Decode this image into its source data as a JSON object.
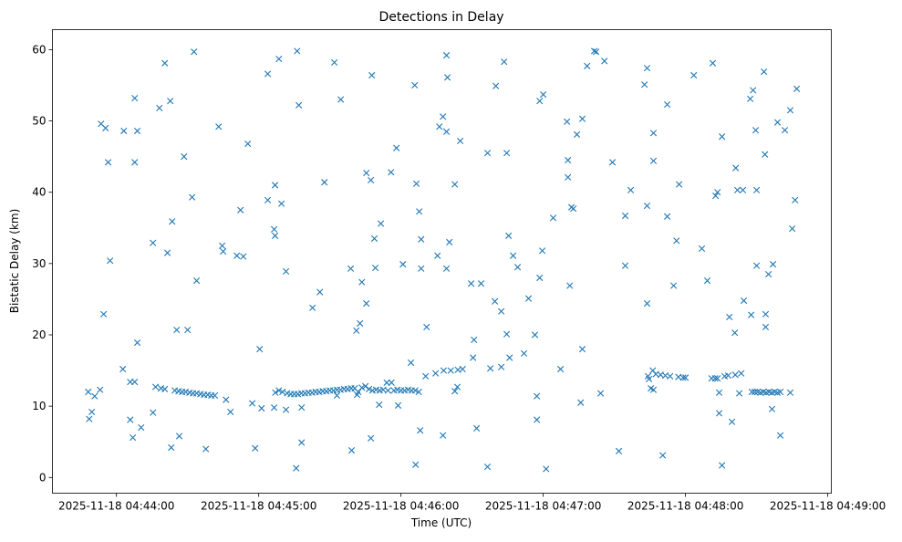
{
  "chart_data": {
    "type": "scatter",
    "title": "Detections in Delay",
    "xlabel": "Time (UTC)",
    "ylabel": "Bistatic Delay (km)",
    "x_unit": "seconds after 2025-11-18 04:44:00 UTC",
    "xlim": [
      -27,
      301.5
    ],
    "ylim": [
      -2.2,
      62.8
    ],
    "grid": false,
    "marker": "x",
    "color": "#1f77b4",
    "x_ticks": [
      {
        "value": 0,
        "label": "2025-11-18 04:44:00"
      },
      {
        "value": 60,
        "label": "2025-11-18 04:45:00"
      },
      {
        "value": 120,
        "label": "2025-11-18 04:46:00"
      },
      {
        "value": 180,
        "label": "2025-11-18 04:47:00"
      },
      {
        "value": 240,
        "label": "2025-11-18 04:48:00"
      },
      {
        "value": 300,
        "label": "2025-11-18 04:49:00"
      }
    ],
    "y_ticks": [
      {
        "value": 0,
        "label": "0"
      },
      {
        "value": 10,
        "label": "10"
      },
      {
        "value": 20,
        "label": "20"
      },
      {
        "value": 30,
        "label": "30"
      },
      {
        "value": 40,
        "label": "40"
      },
      {
        "value": 50,
        "label": "50"
      },
      {
        "value": 60,
        "label": "60"
      }
    ],
    "points": [
      [
        -11.9,
        12.0
      ],
      [
        -11.5,
        8.2
      ],
      [
        -10.4,
        9.2
      ],
      [
        -9.2,
        11.4
      ],
      [
        -6.9,
        12.3
      ],
      [
        -6.5,
        49.6
      ],
      [
        -5.4,
        22.9
      ],
      [
        -4.6,
        49.0
      ],
      [
        -3.5,
        44.2
      ],
      [
        -2.7,
        30.4
      ],
      [
        2.7,
        15.2
      ],
      [
        3.1,
        48.6
      ],
      [
        5.8,
        8.1
      ],
      [
        5.8,
        13.4
      ],
      [
        6.9,
        5.6
      ],
      [
        7.7,
        53.2
      ],
      [
        7.7,
        44.2
      ],
      [
        7.7,
        13.4
      ],
      [
        8.8,
        48.6
      ],
      [
        8.8,
        18.9
      ],
      [
        10.4,
        7.0
      ],
      [
        15.4,
        32.9
      ],
      [
        15.4,
        9.1
      ],
      [
        16.5,
        12.7
      ],
      [
        18.1,
        51.8
      ],
      [
        18.8,
        12.5
      ],
      [
        20.4,
        58.1
      ],
      [
        20.4,
        12.4
      ],
      [
        21.5,
        31.5
      ],
      [
        22.7,
        52.8
      ],
      [
        23.1,
        4.2
      ],
      [
        23.5,
        35.9
      ],
      [
        24.6,
        12.2
      ],
      [
        26.2,
        12.1
      ],
      [
        27.7,
        12.0
      ],
      [
        29.2,
        12.0
      ],
      [
        30.8,
        11.9
      ],
      [
        32.3,
        11.8
      ],
      [
        33.8,
        11.8
      ],
      [
        35.4,
        11.7
      ],
      [
        36.9,
        11.6
      ],
      [
        38.5,
        11.6
      ],
      [
        40.0,
        11.5
      ],
      [
        41.5,
        11.5
      ],
      [
        25.4,
        20.7
      ],
      [
        26.5,
        5.8
      ],
      [
        28.5,
        45.0
      ],
      [
        30.0,
        20.7
      ],
      [
        31.9,
        39.3
      ],
      [
        32.7,
        59.7
      ],
      [
        33.8,
        27.6
      ],
      [
        37.7,
        4.0
      ],
      [
        43.1,
        49.2
      ],
      [
        44.6,
        32.5
      ],
      [
        45.0,
        31.7
      ],
      [
        46.2,
        10.9
      ],
      [
        48.1,
        9.2
      ],
      [
        50.8,
        31.1
      ],
      [
        52.3,
        37.5
      ],
      [
        53.5,
        31.0
      ],
      [
        55.4,
        46.8
      ],
      [
        57.3,
        10.4
      ],
      [
        58.5,
        4.1
      ],
      [
        60.4,
        18.0
      ],
      [
        61.2,
        9.7
      ],
      [
        63.8,
        56.6
      ],
      [
        63.8,
        38.9
      ],
      [
        66.5,
        34.8
      ],
      [
        66.9,
        33.9
      ],
      [
        66.9,
        41.0
      ],
      [
        66.5,
        9.8
      ],
      [
        68.5,
        58.7
      ],
      [
        69.6,
        38.4
      ],
      [
        71.5,
        28.9
      ],
      [
        71.5,
        9.5
      ],
      [
        67.0,
        11.9
      ],
      [
        68.5,
        12.2
      ],
      [
        70.0,
        12.0
      ],
      [
        72.0,
        11.8
      ],
      [
        73.5,
        11.7
      ],
      [
        75.0,
        11.7
      ],
      [
        76.5,
        11.7
      ],
      [
        78.0,
        11.8
      ],
      [
        79.5,
        11.8
      ],
      [
        81.0,
        11.9
      ],
      [
        82.5,
        11.9
      ],
      [
        84.0,
        12.0
      ],
      [
        85.5,
        12.0
      ],
      [
        87.0,
        12.1
      ],
      [
        88.5,
        12.1
      ],
      [
        90.0,
        12.2
      ],
      [
        91.5,
        12.2
      ],
      [
        93.0,
        12.3
      ],
      [
        94.5,
        12.3
      ],
      [
        96.0,
        12.4
      ],
      [
        97.5,
        12.4
      ],
      [
        99.0,
        12.5
      ],
      [
        100.5,
        12.5
      ],
      [
        102.0,
        12.0
      ],
      [
        103.5,
        12.6
      ],
      [
        105.0,
        12.8
      ],
      [
        106.5,
        12.4
      ],
      [
        108.0,
        12.2
      ],
      [
        109.5,
        12.3
      ],
      [
        75.8,
        1.3
      ],
      [
        76.2,
        59.8
      ],
      [
        76.9,
        52.2
      ],
      [
        78.1,
        9.8
      ],
      [
        78.1,
        4.9
      ],
      [
        82.7,
        23.8
      ],
      [
        85.8,
        26.0
      ],
      [
        87.7,
        41.4
      ],
      [
        91.9,
        58.2
      ],
      [
        93.0,
        11.5
      ],
      [
        94.6,
        53.0
      ],
      [
        98.8,
        29.3
      ],
      [
        99.2,
        3.8
      ],
      [
        101.2,
        20.6
      ],
      [
        101.5,
        11.6
      ],
      [
        102.7,
        21.6
      ],
      [
        103.5,
        27.4
      ],
      [
        105.4,
        42.7
      ],
      [
        105.4,
        24.4
      ],
      [
        107.3,
        41.7
      ],
      [
        107.3,
        5.5
      ],
      [
        107.7,
        56.4
      ],
      [
        108.8,
        33.5
      ],
      [
        109.2,
        29.4
      ],
      [
        110.8,
        10.2
      ],
      [
        111.5,
        35.6
      ],
      [
        111.0,
        12.2
      ],
      [
        112.5,
        12.3
      ],
      [
        114.0,
        13.3
      ],
      [
        114.5,
        12.2
      ],
      [
        116.0,
        13.3
      ],
      [
        117.0,
        12.2
      ],
      [
        118.5,
        12.3
      ],
      [
        120.0,
        12.2
      ],
      [
        121.5,
        12.2
      ],
      [
        123.0,
        12.3
      ],
      [
        124.5,
        12.2
      ],
      [
        126.0,
        12.2
      ],
      [
        127.5,
        12.0
      ],
      [
        115.8,
        42.8
      ],
      [
        118.1,
        46.2
      ],
      [
        118.8,
        10.1
      ],
      [
        120.8,
        29.9
      ],
      [
        124.2,
        16.1
      ],
      [
        125.8,
        55.0
      ],
      [
        126.2,
        1.8
      ],
      [
        126.5,
        41.2
      ],
      [
        127.7,
        37.3
      ],
      [
        128.1,
        6.6
      ],
      [
        128.5,
        33.4
      ],
      [
        128.5,
        29.3
      ],
      [
        130.8,
        21.1
      ],
      [
        130.4,
        14.2
      ],
      [
        134.6,
        14.6
      ],
      [
        138.0,
        15.0
      ],
      [
        141.0,
        15.0
      ],
      [
        144.0,
        15.1
      ],
      [
        146.0,
        15.2
      ],
      [
        135.4,
        31.1
      ],
      [
        136.2,
        49.2
      ],
      [
        137.7,
        50.6
      ],
      [
        137.7,
        5.9
      ],
      [
        139.2,
        48.5
      ],
      [
        139.2,
        59.2
      ],
      [
        139.2,
        29.3
      ],
      [
        139.6,
        56.1
      ],
      [
        140.4,
        33.0
      ],
      [
        142.7,
        41.1
      ],
      [
        142.7,
        12.1
      ],
      [
        143.8,
        12.7
      ],
      [
        145.0,
        47.2
      ],
      [
        149.6,
        27.2
      ],
      [
        150.4,
        16.8
      ],
      [
        150.8,
        19.3
      ],
      [
        151.9,
        6.9
      ],
      [
        153.8,
        27.2
      ],
      [
        156.5,
        45.5
      ],
      [
        156.5,
        1.5
      ],
      [
        157.7,
        15.3
      ],
      [
        159.6,
        24.7
      ],
      [
        160.0,
        54.9
      ],
      [
        162.3,
        23.3
      ],
      [
        162.3,
        15.5
      ],
      [
        163.5,
        58.3
      ],
      [
        164.6,
        45.5
      ],
      [
        164.6,
        20.1
      ],
      [
        165.4,
        33.9
      ],
      [
        165.8,
        16.8
      ],
      [
        167.3,
        31.1
      ],
      [
        169.2,
        29.5
      ],
      [
        171.9,
        17.4
      ],
      [
        173.8,
        25.1
      ],
      [
        176.5,
        20.0
      ],
      [
        177.3,
        8.1
      ],
      [
        177.3,
        11.4
      ],
      [
        178.5,
        52.8
      ],
      [
        178.5,
        28.0
      ],
      [
        179.6,
        31.8
      ],
      [
        180.0,
        53.7
      ],
      [
        181.2,
        1.2
      ],
      [
        184.2,
        36.4
      ],
      [
        187.3,
        15.2
      ],
      [
        190.0,
        49.9
      ],
      [
        190.4,
        44.5
      ],
      [
        190.4,
        42.1
      ],
      [
        191.2,
        26.9
      ],
      [
        191.9,
        37.9
      ],
      [
        192.7,
        37.7
      ],
      [
        194.2,
        48.1
      ],
      [
        195.8,
        10.5
      ],
      [
        196.5,
        50.3
      ],
      [
        196.5,
        18.0
      ],
      [
        198.5,
        57.7
      ],
      [
        201.5,
        59.8
      ],
      [
        202.3,
        59.7
      ],
      [
        204.2,
        11.8
      ],
      [
        205.8,
        58.4
      ],
      [
        209.2,
        44.2
      ],
      [
        211.9,
        3.7
      ],
      [
        214.6,
        36.7
      ],
      [
        214.6,
        29.7
      ],
      [
        216.9,
        40.3
      ],
      [
        222.7,
        55.1
      ],
      [
        223.8,
        57.4
      ],
      [
        223.8,
        38.1
      ],
      [
        223.8,
        24.4
      ],
      [
        224.2,
        14.2
      ],
      [
        224.6,
        13.8
      ],
      [
        225.4,
        12.5
      ],
      [
        226.2,
        15.0
      ],
      [
        226.5,
        48.3
      ],
      [
        226.5,
        44.4
      ],
      [
        226.5,
        12.3
      ],
      [
        227.5,
        14.5
      ],
      [
        229.5,
        14.4
      ],
      [
        231.5,
        14.3
      ],
      [
        233.5,
        14.2
      ],
      [
        237.0,
        14.1
      ],
      [
        239.0,
        14.0
      ],
      [
        240.0,
        14.0
      ],
      [
        230.4,
        3.1
      ],
      [
        232.3,
        36.6
      ],
      [
        232.3,
        52.3
      ],
      [
        235.0,
        26.9
      ],
      [
        236.2,
        33.2
      ],
      [
        237.3,
        41.1
      ],
      [
        243.5,
        56.4
      ],
      [
        246.9,
        32.1
      ],
      [
        249.2,
        27.6
      ],
      [
        251.5,
        58.1
      ],
      [
        251.0,
        13.9
      ],
      [
        252.5,
        13.9
      ],
      [
        252.7,
        39.5
      ],
      [
        253.5,
        40.0
      ],
      [
        253.5,
        13.9
      ],
      [
        254.2,
        11.9
      ],
      [
        254.2,
        9.0
      ],
      [
        255.4,
        47.8
      ],
      [
        255.4,
        1.7
      ],
      [
        256.5,
        14.2
      ],
      [
        258.0,
        14.3
      ],
      [
        258.5,
        22.5
      ],
      [
        259.6,
        7.8
      ],
      [
        260.8,
        20.3
      ],
      [
        261.2,
        43.4
      ],
      [
        261.0,
        14.4
      ],
      [
        261.9,
        40.3
      ],
      [
        262.7,
        11.8
      ],
      [
        263.5,
        14.6
      ],
      [
        264.2,
        40.3
      ],
      [
        264.6,
        24.8
      ],
      [
        267.3,
        53.1
      ],
      [
        267.7,
        22.8
      ],
      [
        268.5,
        54.3
      ],
      [
        269.6,
        48.7
      ],
      [
        270.0,
        40.3
      ],
      [
        270.0,
        29.7
      ],
      [
        273.1,
        56.9
      ],
      [
        273.5,
        45.3
      ],
      [
        273.8,
        21.1
      ],
      [
        273.8,
        22.9
      ],
      [
        275.0,
        28.5
      ],
      [
        268.0,
        12.0
      ],
      [
        269.2,
        12.0
      ],
      [
        270.4,
        12.0
      ],
      [
        271.6,
        11.9
      ],
      [
        272.8,
        12.0
      ],
      [
        274.0,
        11.9
      ],
      [
        275.2,
        12.0
      ],
      [
        276.4,
        11.9
      ],
      [
        277.6,
        12.0
      ],
      [
        278.8,
        11.9
      ],
      [
        280.0,
        12.0
      ],
      [
        284.2,
        11.9
      ],
      [
        276.5,
        9.6
      ],
      [
        276.9,
        29.9
      ],
      [
        278.8,
        49.8
      ],
      [
        280.0,
        5.9
      ],
      [
        281.9,
        48.7
      ],
      [
        284.2,
        51.5
      ],
      [
        285.0,
        34.9
      ],
      [
        286.2,
        38.9
      ],
      [
        286.9,
        54.5
      ]
    ]
  }
}
